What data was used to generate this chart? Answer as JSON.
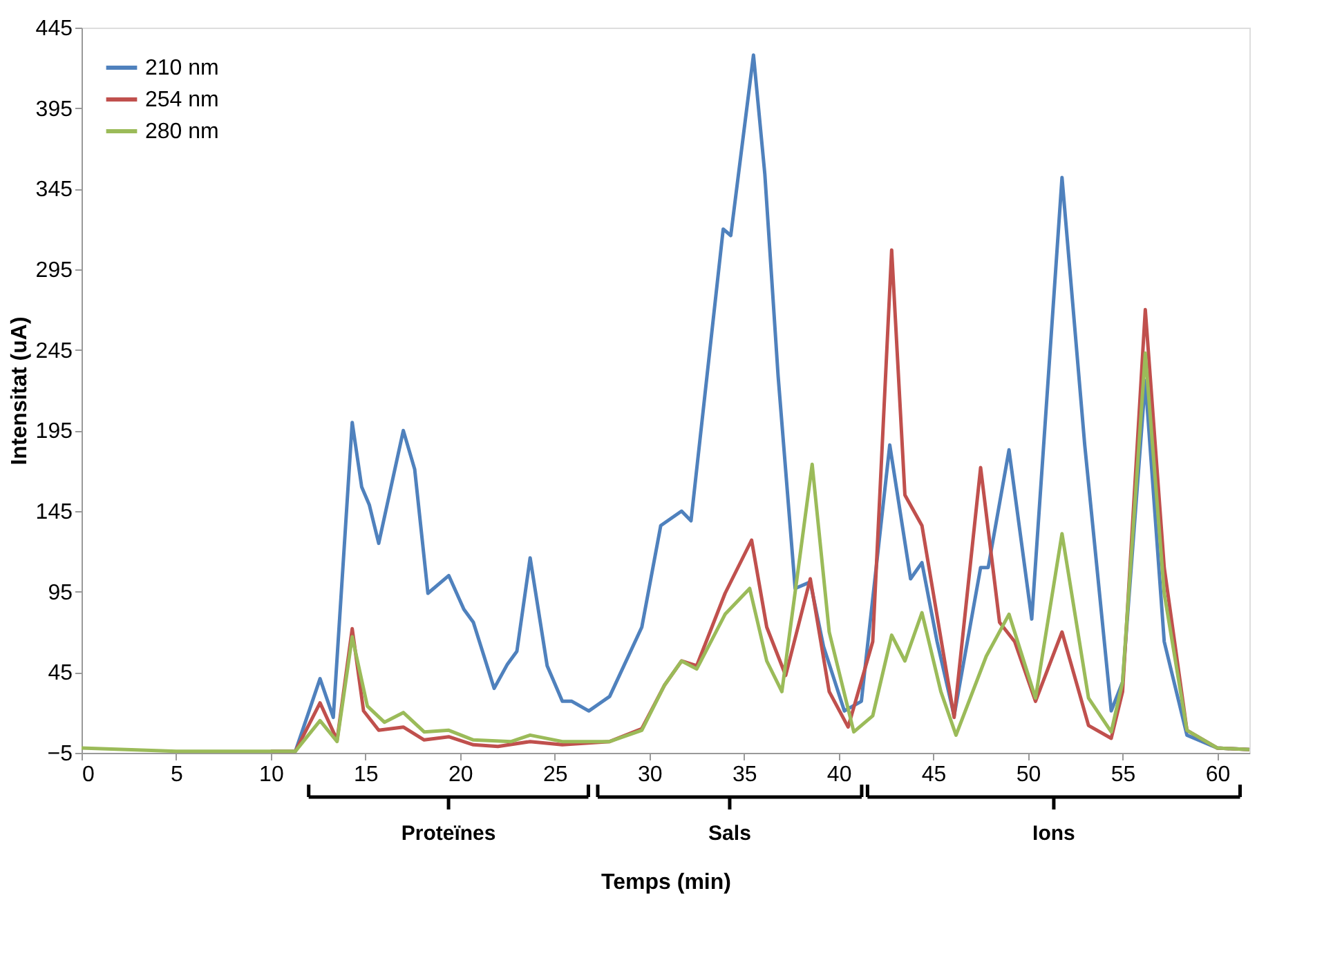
{
  "chart_data": {
    "type": "line",
    "xlabel": "Temps (min)",
    "ylabel": "Intensitat (uA)",
    "xlim": [
      0,
      61.7
    ],
    "xticks": [
      0,
      5,
      10,
      15,
      20,
      25,
      30,
      35,
      40,
      45,
      50,
      55,
      60
    ],
    "ylim": [
      -5,
      445
    ],
    "yticks": [
      -5,
      45,
      95,
      145,
      195,
      245,
      295,
      345,
      395,
      445
    ],
    "grid": false,
    "legend": "top left",
    "marker": "none",
    "line_style": "solid",
    "series": [
      {
        "name": "210 nm",
        "color": "#4f81bd",
        "x": [
          10,
          11.3,
          12.6,
          13.3,
          14.3,
          14.8,
          15.2,
          15.7,
          17.0,
          17.6,
          18.3,
          19.4,
          20.2,
          20.7,
          21.8,
          22.5,
          23.0,
          23.7,
          24.6,
          25.4,
          25.9,
          26.8,
          27.9,
          29.6,
          30.6,
          31.7,
          32.2,
          33.9,
          34.3,
          35.5,
          36.1,
          36.8,
          37.7,
          38.5,
          39.2,
          40.3,
          41.2,
          42.7,
          43.8,
          44.4,
          45.2,
          46.1,
          47.5,
          47.9,
          49.0,
          50.2,
          51.8,
          53.0,
          54.4,
          55.0,
          56.2,
          57.2,
          58.4,
          60,
          61.7
        ],
        "values": [
          -4,
          -4,
          41,
          17,
          200,
          160,
          149,
          125,
          195,
          171,
          94,
          105,
          84,
          76,
          35,
          50,
          58,
          116,
          49,
          27,
          27,
          21,
          30,
          73,
          136,
          145,
          139,
          320,
          316,
          428,
          354,
          229,
          97,
          101,
          61,
          21,
          27,
          186,
          103,
          113,
          64,
          18,
          110,
          110,
          183,
          78,
          352,
          186,
          21,
          39,
          226,
          64,
          6,
          -2,
          -3
        ]
      },
      {
        "name": "254 nm",
        "color": "#c0504d",
        "x": [
          10,
          11.3,
          12.6,
          13.5,
          14.3,
          14.9,
          15.7,
          17.0,
          18.1,
          19.4,
          20.7,
          22.0,
          23.7,
          25.4,
          27.9,
          29.6,
          30.8,
          31.7,
          32.5,
          34.0,
          35.4,
          36.2,
          37.2,
          38.5,
          39.5,
          40.5,
          41.8,
          42.8,
          43.5,
          44.4,
          45.2,
          46.1,
          47.5,
          48.5,
          49.3,
          50.4,
          51.8,
          53.2,
          54.4,
          55.0,
          56.2,
          57.2,
          58.4,
          60,
          61.7
        ],
        "values": [
          -4,
          -4,
          26,
          3,
          72,
          21,
          9,
          11,
          3,
          5,
          0,
          -1,
          2,
          0,
          2,
          10,
          37,
          52,
          49,
          94,
          127,
          73,
          43,
          103,
          33,
          11,
          64,
          307,
          155,
          136,
          80,
          17,
          172,
          76,
          64,
          27,
          70,
          12,
          4,
          33,
          270,
          110,
          9,
          -2,
          -3
        ]
      },
      {
        "name": "280 nm",
        "color": "#9bbb59",
        "x": [
          0,
          5,
          10,
          11.3,
          12.6,
          13.5,
          14.3,
          15.1,
          16.0,
          17.0,
          18.1,
          19.4,
          20.7,
          22.7,
          23.7,
          25.4,
          27.9,
          29.6,
          30.8,
          31.7,
          32.5,
          34.0,
          35.3,
          36.2,
          37.0,
          38.6,
          39.5,
          40.8,
          41.8,
          42.8,
          43.5,
          44.4,
          45.4,
          46.2,
          47.8,
          49.0,
          50.4,
          51.8,
          53.2,
          54.4,
          55.0,
          56.2,
          57.2,
          58.4,
          60,
          61.7
        ],
        "values": [
          -2,
          -4,
          -4,
          -4,
          15,
          2,
          67,
          24,
          14,
          20,
          8,
          9,
          3,
          2,
          6,
          2,
          2,
          9,
          37,
          52,
          47,
          81,
          97,
          52,
          33,
          174,
          70,
          8,
          18,
          68,
          52,
          82,
          33,
          6,
          55,
          81,
          29,
          131,
          29,
          8,
          39,
          243,
          94,
          9,
          -2,
          -3
        ]
      }
    ],
    "annotations": [
      "Proteïnes",
      "Sals",
      "Ions"
    ]
  }
}
